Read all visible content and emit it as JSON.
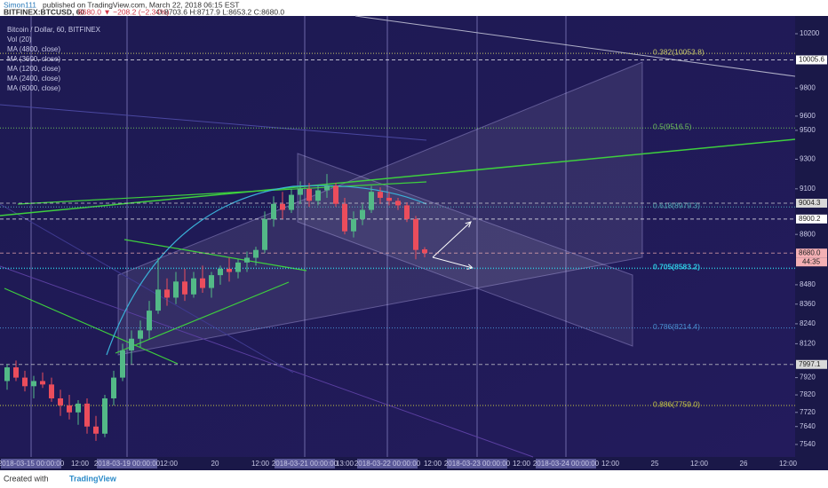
{
  "header": {
    "author": "Simon111",
    "published": "published on TradingView.com, March 22, 2018 06:15 EST",
    "symbol": "BITFINEX:BTCUSD, 60",
    "change": "8680.0 ▼ −208.2 (−2.34%)",
    "ohlc": "O:8703.6 H:8717.9 L:8653.2 C:8680.0"
  },
  "legend": [
    "Bitcoin / Dollar, 60, BITFINEX",
    "Vol (20)",
    "MA (4800, close)",
    "MA (3600, close)",
    "MA (1200, close)",
    "MA (2400, close)",
    "MA (6000, close)"
  ],
  "footer": {
    "created": "Created with",
    "brand": "TradingView"
  },
  "chart_data": {
    "type": "candlestick",
    "log_scale": true,
    "up_color": "#53b987",
    "down_color": "#eb4d5c",
    "ylim": [
      7471,
      10334
    ],
    "yticks": [
      10200,
      9800,
      9600,
      9500,
      9300,
      9100,
      8800,
      8480,
      8360,
      8240,
      8120,
      7920,
      7820,
      7720,
      7640,
      7540
    ],
    "x_labels": [
      "2018-03-15 00:00:00",
      "12:00",
      "2018-03-19 00:00:00",
      "12:00",
      "20",
      "12:00",
      "2018-03-21 00:00:00",
      "13:00",
      "2018-03-22 00:00:00",
      "12:00",
      "2018-03-23 00:00:00",
      "12:00",
      "2018-03-24 00:00:00",
      "12:00",
      "25",
      "12:00",
      "26",
      "12:00"
    ],
    "candles": [
      [
        7900,
        8000,
        7850,
        7980
      ],
      [
        7980,
        8020,
        7900,
        7920
      ],
      [
        7920,
        7960,
        7840,
        7870
      ],
      [
        7870,
        7930,
        7800,
        7900
      ],
      [
        7900,
        7950,
        7860,
        7880
      ],
      [
        7880,
        7920,
        7780,
        7800
      ],
      [
        7800,
        7850,
        7700,
        7760
      ],
      [
        7760,
        7820,
        7680,
        7720
      ],
      [
        7720,
        7790,
        7650,
        7770
      ],
      [
        7770,
        7800,
        7600,
        7640
      ],
      [
        7640,
        7700,
        7560,
        7600
      ],
      [
        7600,
        7820,
        7580,
        7800
      ],
      [
        7800,
        7960,
        7760,
        7920
      ],
      [
        7920,
        8120,
        7900,
        8080
      ],
      [
        8080,
        8200,
        8000,
        8150
      ],
      [
        8150,
        8260,
        8100,
        8200
      ],
      [
        8200,
        8380,
        8150,
        8320
      ],
      [
        8320,
        8650,
        8300,
        8450
      ],
      [
        8450,
        8520,
        8350,
        8400
      ],
      [
        8400,
        8560,
        8360,
        8500
      ],
      [
        8500,
        8580,
        8380,
        8420
      ],
      [
        8420,
        8560,
        8400,
        8520
      ],
      [
        8520,
        8600,
        8430,
        8460
      ],
      [
        8460,
        8560,
        8400,
        8540
      ],
      [
        8540,
        8600,
        8480,
        8580
      ],
      [
        8580,
        8650,
        8500,
        8560
      ],
      [
        8560,
        8640,
        8520,
        8620
      ],
      [
        8620,
        8690,
        8560,
        8650
      ],
      [
        8650,
        8720,
        8600,
        8700
      ],
      [
        8700,
        8950,
        8680,
        8900
      ],
      [
        8900,
        9050,
        8850,
        9000
      ],
      [
        9000,
        9080,
        8900,
        8960
      ],
      [
        8960,
        9100,
        8940,
        9060
      ],
      [
        9060,
        9150,
        9000,
        9100
      ],
      [
        9100,
        9140,
        8980,
        9020
      ],
      [
        9020,
        9120,
        8990,
        9090
      ],
      [
        9090,
        9200,
        9040,
        9120
      ],
      [
        9120,
        9140,
        8980,
        9000
      ],
      [
        9000,
        9040,
        8800,
        8820
      ],
      [
        8820,
        8950,
        8780,
        8900
      ],
      [
        8900,
        9000,
        8860,
        8960
      ],
      [
        8960,
        9120,
        8940,
        9080
      ],
      [
        9080,
        9110,
        9000,
        9040
      ],
      [
        9040,
        9080,
        8990,
        9020
      ],
      [
        9020,
        9040,
        8960,
        8990
      ],
      [
        8990,
        9010,
        8880,
        8900
      ],
      [
        8900,
        8920,
        8640,
        8700
      ],
      [
        8703.6,
        8717.9,
        8653.2,
        8680.0
      ]
    ],
    "fib_levels": [
      {
        "value": 10053.8,
        "label": "0.382(10053.8)",
        "color": "#c8c86a"
      },
      {
        "value": 9516.5,
        "label": "0.5(9516.5)",
        "color": "#6fbf5b"
      },
      {
        "value": 8979.3,
        "label": "0.618(8979.3)",
        "color": "#4fa7b3"
      },
      {
        "value": 8583.2,
        "label": "0.705(8583.2)",
        "color": "#2ec6e0"
      },
      {
        "value": 8214.4,
        "label": "0.786(8214.4)",
        "color": "#4a8fd0"
      },
      {
        "value": 7759.0,
        "label": "0.886(7759.0)",
        "color": "#c9c944"
      }
    ],
    "price_tags": [
      {
        "value": 10005.6,
        "label": "10005.6",
        "color": "#ffffff"
      },
      {
        "value": 9004.3,
        "label": "9004.3",
        "color": "#d8d8d8"
      },
      {
        "value": 8900.2,
        "label": "8900.2",
        "color": "#ffffff"
      },
      {
        "value": 8680.0,
        "label": "8680.0",
        "color": "#f4b0b4"
      },
      {
        "value": 7997.1,
        "label": "7997.1",
        "color": "#d8d8d8"
      }
    ],
    "countdown": "44:35"
  }
}
